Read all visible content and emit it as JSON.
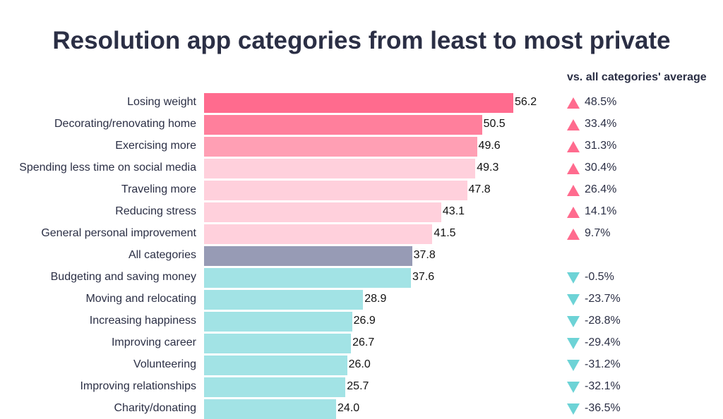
{
  "chart_data": {
    "type": "bar",
    "orientation": "horizontal",
    "title": "Resolution app categories from least to most private",
    "comparison_header": "vs. all categories' average",
    "categories": [
      "Losing weight",
      "Decorating/renovating home",
      "Exercising more",
      "Spending less time on social media",
      "Traveling more",
      "Reducing stress",
      "General personal improvement",
      "All categories",
      "Budgeting and saving money",
      "Moving and relocating",
      "Increasing happiness",
      "Improving career",
      "Volunteering",
      "Improving relationships",
      "Charity/donating"
    ],
    "values": [
      56.2,
      50.5,
      49.6,
      49.3,
      47.8,
      43.1,
      41.5,
      37.8,
      37.6,
      28.9,
      26.9,
      26.7,
      26.0,
      25.7,
      24.0
    ],
    "value_labels": [
      "56.2",
      "50.5",
      "49.6",
      "49.3",
      "47.8",
      "43.1",
      "41.5",
      "37.8",
      "37.6",
      "28.9",
      "26.9",
      "26.7",
      "26.0",
      "25.7",
      "24.0"
    ],
    "vs_average": [
      "48.5%",
      "33.4%",
      "31.3%",
      "30.4%",
      "26.4%",
      "14.1%",
      "9.7%",
      "",
      "-0.5%",
      "-23.7%",
      "-28.8%",
      "-29.4%",
      "-31.2%",
      "-32.1%",
      "-36.5%"
    ],
    "bar_colors": [
      "#ff6b8e",
      "#ff7f9c",
      "#ff9fb4",
      "#ffd0dc",
      "#ffd0dc",
      "#ffd0dc",
      "#ffd0dc",
      "#979bb5",
      "#a2e3e5",
      "#a2e3e5",
      "#a2e3e5",
      "#a2e3e5",
      "#a2e3e5",
      "#a2e3e5",
      "#a2e3e5"
    ],
    "up_color": "#ff6b8e",
    "down_color": "#6dd3d6",
    "xlim": [
      0,
      56.2
    ],
    "grid": false
  }
}
